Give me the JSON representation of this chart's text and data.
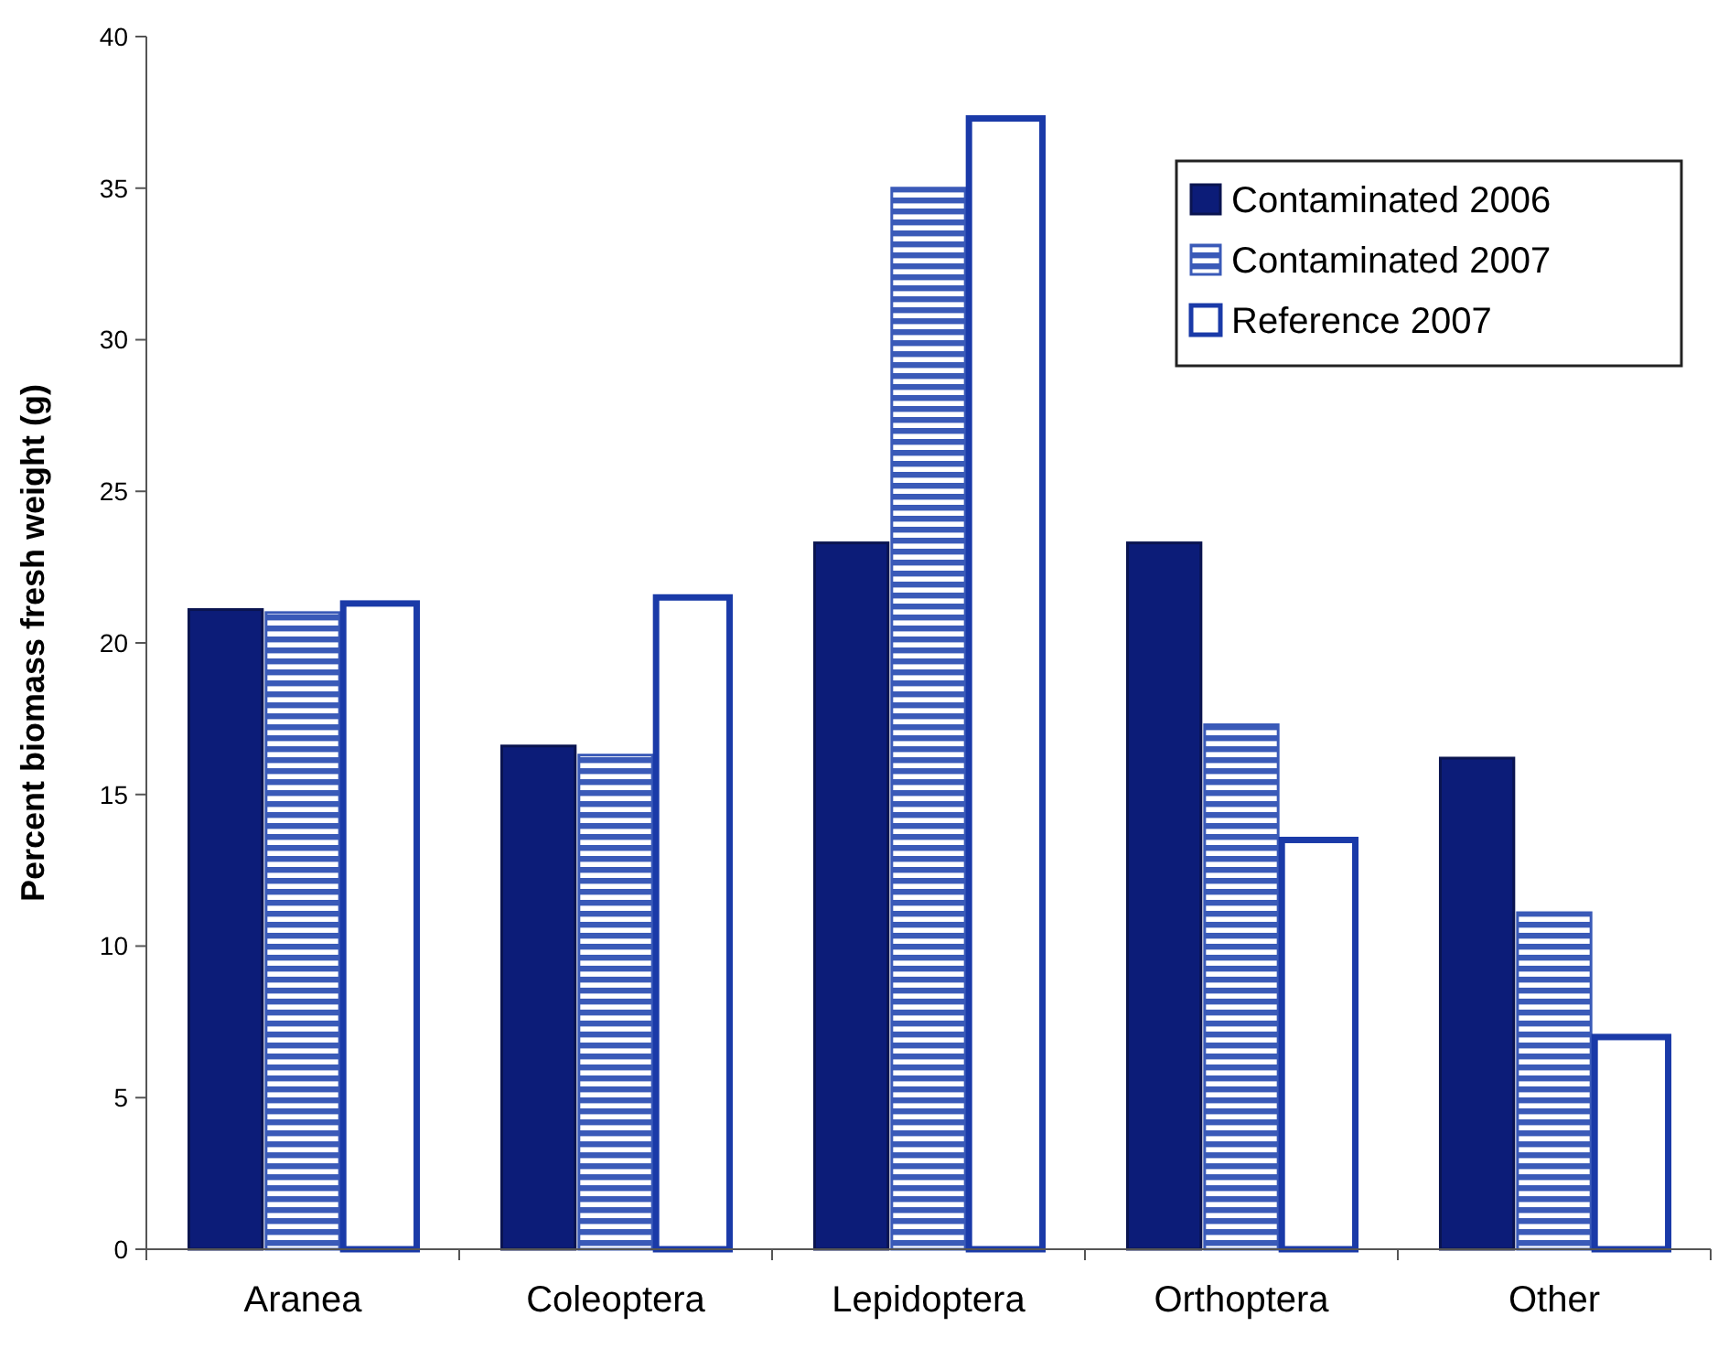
{
  "chart_data": {
    "type": "bar",
    "ylabel": "Percent biomass fresh weight (g)",
    "categories": [
      "Aranea",
      "Coleoptera",
      "Lepidoptera",
      "Orthoptera",
      "Other"
    ],
    "series": [
      {
        "name": "Contaminated 2006",
        "color": "#0c1c78",
        "values": [
          21.1,
          16.6,
          23.3,
          23.3,
          16.2
        ]
      },
      {
        "name": "Contaminated 2007",
        "color": "#3a5ab8",
        "values": [
          21.0,
          16.3,
          35.0,
          17.3,
          11.1
        ]
      },
      {
        "name": "Reference 2007",
        "color": "#1a3aa8",
        "values": [
          21.3,
          21.5,
          37.3,
          13.5,
          7.0
        ]
      }
    ],
    "ylim": [
      0,
      40
    ],
    "yticks": [
      0,
      5,
      10,
      15,
      20,
      25,
      30,
      35,
      40
    ],
    "grid": false,
    "legend": "top right"
  }
}
